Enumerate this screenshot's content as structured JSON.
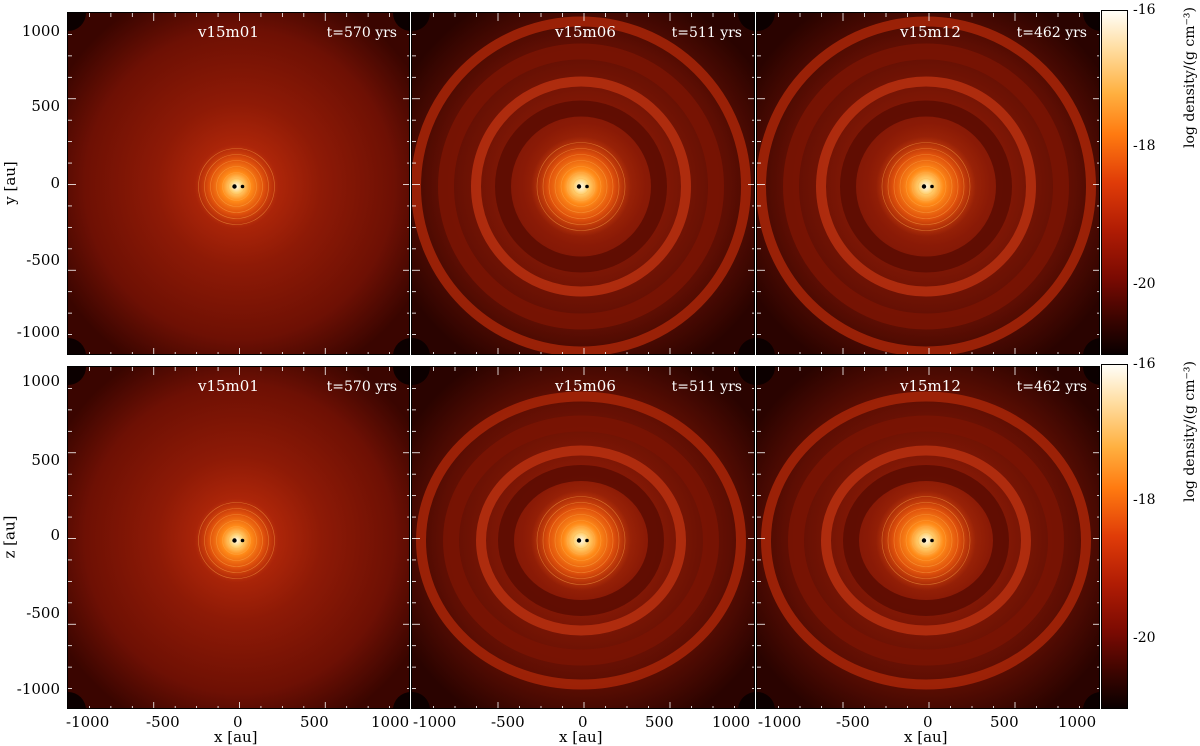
{
  "rows": [
    {
      "ylabel": "y [au]",
      "panels": [
        {
          "title": "v15m01",
          "time": "t=570 yrs",
          "style": "smooth"
        },
        {
          "title": "v15m06",
          "time": "t=511 yrs",
          "style": "spiral"
        },
        {
          "title": "v15m12",
          "time": "t=462 yrs",
          "style": "spiral2"
        }
      ],
      "colorbar": {
        "label": "log density/(g cm⁻³)",
        "ticks": [
          "-16",
          "-18",
          "-20"
        ]
      }
    },
    {
      "ylabel": "z [au]",
      "panels": [
        {
          "title": "v15m01",
          "time": "t=570 yrs",
          "style": "smooth"
        },
        {
          "title": "v15m06",
          "time": "t=511 yrs",
          "style": "shell"
        },
        {
          "title": "v15m12",
          "time": "t=462 yrs",
          "style": "shell2"
        }
      ],
      "colorbar": {
        "label": "log density/(g cm⁻³)",
        "ticks": [
          "-16",
          "-18",
          "-20"
        ]
      }
    }
  ],
  "yticks": [
    "1000",
    "500",
    "0",
    "-500",
    "-1000"
  ],
  "xticks": [
    "-1000",
    "-500",
    "0",
    "500",
    "1000"
  ],
  "xlabel": "x [au]"
}
